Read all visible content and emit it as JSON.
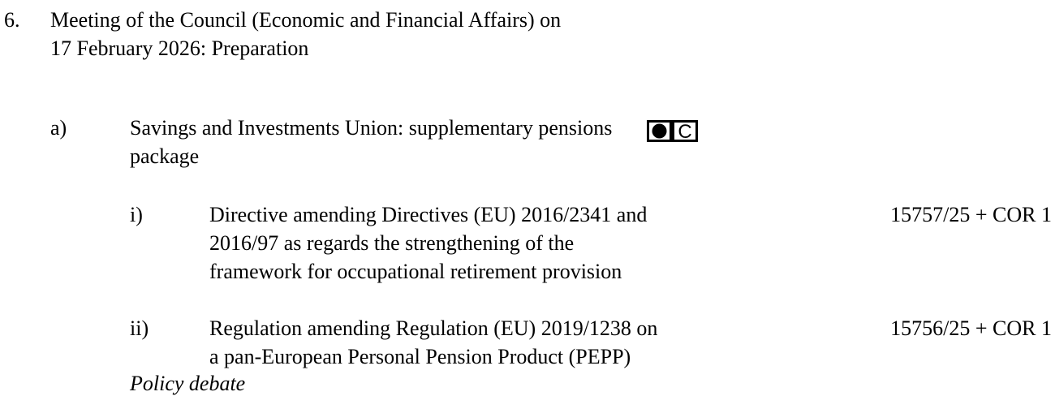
{
  "item": {
    "number": "6.",
    "title_lines": [
      "Meeting of the Council (Economic and Financial Affairs) on",
      "17 February 2026: Preparation"
    ],
    "subitem": {
      "label": "a)",
      "title_lines": [
        "Savings and Investments Union: supplementary pensions",
        "package"
      ],
      "marker": "C",
      "parts": [
        {
          "label": "i)",
          "lines": [
            "Directive amending Directives (EU) 2016/2341 and",
            "2016/97 as regards the strengthening of the",
            "framework for occupational retirement provision"
          ],
          "reference": "15757/25 + COR 1"
        },
        {
          "label": "ii)",
          "lines": [
            "Regulation amending Regulation (EU) 2019/1238 on",
            "a pan-European Personal Pension Product (PEPP)"
          ],
          "reference": "15756/25 + COR 1"
        }
      ],
      "note": "Policy debate"
    }
  }
}
